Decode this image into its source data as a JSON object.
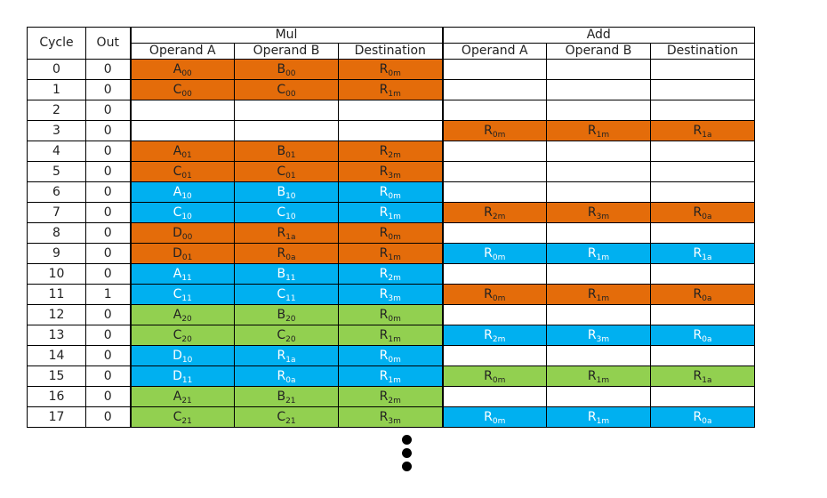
{
  "colors": {
    "orange": "#e46c0a",
    "blue": "#00b0f0",
    "green": "#92d050",
    "white": "#ffffff"
  },
  "header": {
    "cycle": "Cycle",
    "out": "Out",
    "mul": "Mul",
    "add": "Add",
    "mul_cols": [
      "Operand A",
      "Operand B",
      "Destination"
    ],
    "add_cols": [
      "Operand A",
      "Operand B",
      "Destination"
    ]
  },
  "rows": [
    {
      "cycle": "0",
      "out": "0",
      "mul": {
        "color": "orange",
        "cells": [
          [
            "A",
            "00",
            false
          ],
          [
            "B",
            "00",
            false
          ],
          [
            "R",
            "0m",
            true
          ]
        ]
      },
      "add": {
        "color": "white",
        "cells": []
      }
    },
    {
      "cycle": "1",
      "out": "0",
      "mul": {
        "color": "orange",
        "cells": [
          [
            "C",
            "00",
            false
          ],
          [
            "C",
            "00",
            false
          ],
          [
            "R",
            "1m",
            true
          ]
        ]
      },
      "add": {
        "color": "white",
        "cells": []
      }
    },
    {
      "cycle": "2",
      "out": "0",
      "mul": {
        "color": "white",
        "cells": []
      },
      "add": {
        "color": "white",
        "cells": []
      }
    },
    {
      "cycle": "3",
      "out": "0",
      "mul": {
        "color": "white",
        "cells": []
      },
      "add": {
        "color": "orange",
        "cells": [
          [
            "R",
            "0m",
            true
          ],
          [
            "R",
            "1m",
            true
          ],
          [
            "R",
            "1a",
            true
          ]
        ]
      }
    },
    {
      "cycle": "4",
      "out": "0",
      "mul": {
        "color": "orange",
        "cells": [
          [
            "A",
            "01",
            false
          ],
          [
            "B",
            "01",
            false
          ],
          [
            "R",
            "2m",
            true
          ]
        ]
      },
      "add": {
        "color": "white",
        "cells": []
      }
    },
    {
      "cycle": "5",
      "out": "0",
      "mul": {
        "color": "orange",
        "cells": [
          [
            "C",
            "01",
            false
          ],
          [
            "C",
            "01",
            false
          ],
          [
            "R",
            "3m",
            true
          ]
        ]
      },
      "add": {
        "color": "white",
        "cells": []
      }
    },
    {
      "cycle": "6",
      "out": "0",
      "mul": {
        "color": "blue",
        "cells": [
          [
            "A",
            "10",
            false
          ],
          [
            "B",
            "10",
            false
          ],
          [
            "R",
            "0m",
            true
          ]
        ]
      },
      "add": {
        "color": "white",
        "cells": []
      }
    },
    {
      "cycle": "7",
      "out": "0",
      "mul": {
        "color": "blue",
        "cells": [
          [
            "C",
            "10",
            false
          ],
          [
            "C",
            "10",
            false
          ],
          [
            "R",
            "1m",
            true
          ]
        ]
      },
      "add": {
        "color": "orange",
        "cells": [
          [
            "R",
            "2m",
            true
          ],
          [
            "R",
            "3m",
            true
          ],
          [
            "R",
            "0a",
            true
          ]
        ]
      }
    },
    {
      "cycle": "8",
      "out": "0",
      "mul": {
        "color": "orange",
        "cells": [
          [
            "D",
            "00",
            false
          ],
          [
            "R",
            "1a",
            true
          ],
          [
            "R",
            "0m",
            true
          ]
        ]
      },
      "add": {
        "color": "white",
        "cells": []
      }
    },
    {
      "cycle": "9",
      "out": "0",
      "mul": {
        "color": "orange",
        "cells": [
          [
            "D",
            "01",
            false
          ],
          [
            "R",
            "0a",
            true
          ],
          [
            "R",
            "1m",
            true
          ]
        ]
      },
      "add": {
        "color": "blue",
        "cells": [
          [
            "R",
            "0m",
            true
          ],
          [
            "R",
            "1m",
            true
          ],
          [
            "R",
            "1a",
            true
          ]
        ]
      }
    },
    {
      "cycle": "10",
      "out": "0",
      "mul": {
        "color": "blue",
        "cells": [
          [
            "A",
            "11",
            false
          ],
          [
            "B",
            "11",
            false
          ],
          [
            "R",
            "2m",
            true
          ]
        ]
      },
      "add": {
        "color": "white",
        "cells": []
      }
    },
    {
      "cycle": "11",
      "out": "1",
      "mul": {
        "color": "blue",
        "cells": [
          [
            "C",
            "11",
            false
          ],
          [
            "C",
            "11",
            false
          ],
          [
            "R",
            "3m",
            true
          ]
        ]
      },
      "add": {
        "color": "orange",
        "cells": [
          [
            "R",
            "0m",
            true
          ],
          [
            "R",
            "1m",
            true
          ],
          [
            "R",
            "0a",
            true
          ]
        ]
      }
    },
    {
      "cycle": "12",
      "out": "0",
      "mul": {
        "color": "green",
        "cells": [
          [
            "A",
            "20",
            false
          ],
          [
            "B",
            "20",
            false
          ],
          [
            "R",
            "0m",
            true
          ]
        ]
      },
      "add": {
        "color": "white",
        "cells": []
      }
    },
    {
      "cycle": "13",
      "out": "0",
      "mul": {
        "color": "green",
        "cells": [
          [
            "C",
            "20",
            false
          ],
          [
            "C",
            "20",
            false
          ],
          [
            "R",
            "1m",
            true
          ]
        ]
      },
      "add": {
        "color": "blue",
        "cells": [
          [
            "R",
            "2m",
            true
          ],
          [
            "R",
            "3m",
            true
          ],
          [
            "R",
            "0a",
            true
          ]
        ]
      }
    },
    {
      "cycle": "14",
      "out": "0",
      "mul": {
        "color": "blue",
        "cells": [
          [
            "D",
            "10",
            false
          ],
          [
            "R",
            "1a",
            true
          ],
          [
            "R",
            "0m",
            true
          ]
        ]
      },
      "add": {
        "color": "white",
        "cells": []
      }
    },
    {
      "cycle": "15",
      "out": "0",
      "mul": {
        "color": "blue",
        "cells": [
          [
            "D",
            "11",
            false
          ],
          [
            "R",
            "0a",
            true
          ],
          [
            "R",
            "1m",
            true
          ]
        ]
      },
      "add": {
        "color": "green",
        "cells": [
          [
            "R",
            "0m",
            true
          ],
          [
            "R",
            "1m",
            true
          ],
          [
            "R",
            "1a",
            true
          ]
        ]
      }
    },
    {
      "cycle": "16",
      "out": "0",
      "mul": {
        "color": "green",
        "cells": [
          [
            "A",
            "21",
            false
          ],
          [
            "B",
            "21",
            false
          ],
          [
            "R",
            "2m",
            true
          ]
        ]
      },
      "add": {
        "color": "white",
        "cells": []
      }
    },
    {
      "cycle": "17",
      "out": "0",
      "mul": {
        "color": "green",
        "cells": [
          [
            "C",
            "21",
            false
          ],
          [
            "C",
            "21",
            false
          ],
          [
            "R",
            "3m",
            true
          ]
        ]
      },
      "add": {
        "color": "blue",
        "cells": [
          [
            "R",
            "0m",
            true
          ],
          [
            "R",
            "1m",
            true
          ],
          [
            "R",
            "0a",
            true
          ]
        ]
      }
    }
  ]
}
